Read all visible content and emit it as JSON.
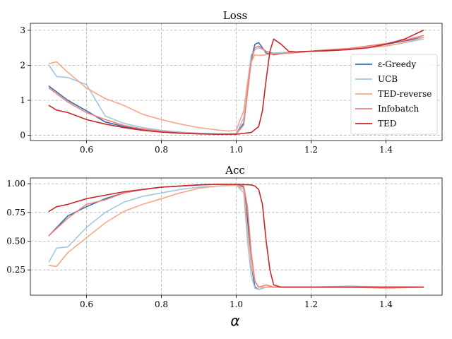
{
  "chart_data": [
    {
      "type": "line",
      "title": "Loss",
      "xlabel": "",
      "ylabel": "",
      "xlim": [
        0.45,
        1.55
      ],
      "ylim": [
        -0.15,
        3.2
      ],
      "xticks": [
        0.6,
        0.8,
        1.0,
        1.2,
        1.4
      ],
      "xtick_labels": [
        "0.6",
        "0.8",
        "1.0",
        "1.2",
        "1.4"
      ],
      "yticks": [
        0,
        1,
        2,
        3
      ],
      "ytick_labels": [
        "0",
        "1",
        "2",
        "3"
      ],
      "grid": true,
      "legend": "right",
      "series": [
        {
          "name": "ε-Greedy",
          "color": "#2f6fad",
          "x": [
            0.5,
            0.55,
            0.6,
            0.65,
            0.7,
            0.75,
            0.8,
            0.85,
            0.9,
            0.95,
            0.98,
            1.0,
            1.02,
            1.03,
            1.04,
            1.05,
            1.06,
            1.08,
            1.1,
            1.15,
            1.2,
            1.25,
            1.3,
            1.35,
            1.4,
            1.45,
            1.5
          ],
          "y": [
            1.4,
            1.0,
            0.7,
            0.38,
            0.25,
            0.16,
            0.1,
            0.06,
            0.04,
            0.03,
            0.03,
            0.04,
            0.35,
            1.3,
            2.2,
            2.6,
            2.65,
            2.35,
            2.3,
            2.38,
            2.4,
            2.45,
            2.45,
            2.5,
            2.6,
            2.7,
            2.8
          ]
        },
        {
          "name": "UCB",
          "color": "#9ec8e0",
          "x": [
            0.5,
            0.52,
            0.55,
            0.6,
            0.65,
            0.7,
            0.75,
            0.8,
            0.85,
            0.9,
            0.95,
            0.98,
            1.0,
            1.02,
            1.03,
            1.04,
            1.05,
            1.06,
            1.08,
            1.1,
            1.15,
            1.2,
            1.25,
            1.3,
            1.35,
            1.4,
            1.45,
            1.5
          ],
          "y": [
            2.0,
            1.68,
            1.65,
            1.45,
            0.55,
            0.34,
            0.22,
            0.14,
            0.09,
            0.06,
            0.04,
            0.04,
            0.05,
            0.5,
            1.5,
            2.3,
            2.45,
            2.5,
            2.4,
            2.35,
            2.38,
            2.4,
            2.42,
            2.45,
            2.5,
            2.55,
            2.65,
            2.75
          ]
        },
        {
          "name": "TED-reverse",
          "color": "#f4a886",
          "x": [
            0.5,
            0.52,
            0.55,
            0.6,
            0.65,
            0.7,
            0.75,
            0.8,
            0.85,
            0.9,
            0.95,
            0.98,
            1.0,
            1.02,
            1.03,
            1.04,
            1.05,
            1.06,
            1.08,
            1.1,
            1.15,
            1.2,
            1.25,
            1.3,
            1.35,
            1.4,
            1.45,
            1.5
          ],
          "y": [
            2.05,
            2.1,
            1.8,
            1.35,
            1.05,
            0.85,
            0.6,
            0.45,
            0.32,
            0.22,
            0.15,
            0.12,
            0.15,
            0.7,
            1.5,
            2.1,
            2.3,
            2.28,
            2.3,
            2.32,
            2.35,
            2.4,
            2.42,
            2.45,
            2.5,
            2.55,
            2.65,
            2.8
          ]
        },
        {
          "name": "Infobatch",
          "color": "#f08078",
          "x": [
            0.5,
            0.55,
            0.6,
            0.65,
            0.7,
            0.75,
            0.8,
            0.85,
            0.9,
            0.95,
            0.98,
            1.0,
            1.02,
            1.03,
            1.04,
            1.05,
            1.06,
            1.08,
            1.1,
            1.15,
            1.2,
            1.25,
            1.3,
            1.35,
            1.4,
            1.45,
            1.5
          ],
          "y": [
            1.35,
            0.95,
            0.65,
            0.45,
            0.28,
            0.18,
            0.11,
            0.07,
            0.05,
            0.03,
            0.03,
            0.04,
            0.3,
            1.2,
            2.1,
            2.5,
            2.55,
            2.4,
            2.32,
            2.36,
            2.4,
            2.45,
            2.48,
            2.55,
            2.62,
            2.72,
            2.85
          ]
        },
        {
          "name": "TED",
          "color": "#c8262a",
          "x": [
            0.5,
            0.52,
            0.55,
            0.6,
            0.65,
            0.7,
            0.75,
            0.8,
            0.85,
            0.9,
            0.95,
            1.0,
            1.04,
            1.06,
            1.07,
            1.08,
            1.09,
            1.1,
            1.12,
            1.14,
            1.16,
            1.2,
            1.25,
            1.3,
            1.35,
            1.4,
            1.45,
            1.5
          ],
          "y": [
            0.85,
            0.72,
            0.65,
            0.45,
            0.32,
            0.22,
            0.14,
            0.09,
            0.06,
            0.04,
            0.03,
            0.03,
            0.08,
            0.25,
            0.7,
            1.6,
            2.4,
            2.75,
            2.6,
            2.4,
            2.38,
            2.4,
            2.42,
            2.45,
            2.5,
            2.6,
            2.75,
            3.0
          ]
        }
      ]
    },
    {
      "type": "line",
      "title": "Acc",
      "xlabel": "α",
      "ylabel": "",
      "xlim": [
        0.45,
        1.55
      ],
      "ylim": [
        0.03,
        1.05
      ],
      "xticks": [
        0.6,
        0.8,
        1.0,
        1.2,
        1.4
      ],
      "xtick_labels": [
        "0.6",
        "0.8",
        "1.0",
        "1.2",
        "1.4"
      ],
      "yticks": [
        0.25,
        0.5,
        0.75,
        1.0
      ],
      "ytick_labels": [
        "0.25",
        "0.50",
        "0.75",
        "1.00"
      ],
      "grid": true,
      "legend": "none",
      "series": [
        {
          "name": "ε-Greedy",
          "color": "#2f6fad",
          "x": [
            0.5,
            0.55,
            0.6,
            0.65,
            0.7,
            0.75,
            0.8,
            0.85,
            0.9,
            0.95,
            1.0,
            1.02,
            1.03,
            1.04,
            1.05,
            1.06,
            1.08,
            1.1,
            1.15,
            1.2,
            1.3,
            1.4,
            1.5
          ],
          "y": [
            0.55,
            0.72,
            0.8,
            0.87,
            0.92,
            0.95,
            0.97,
            0.98,
            0.99,
            0.995,
            0.995,
            0.97,
            0.7,
            0.3,
            0.1,
            0.08,
            0.1,
            0.1,
            0.1,
            0.1,
            0.1,
            0.1,
            0.1
          ]
        },
        {
          "name": "UCB",
          "color": "#9ec8e0",
          "x": [
            0.5,
            0.52,
            0.55,
            0.6,
            0.65,
            0.7,
            0.75,
            0.8,
            0.85,
            0.9,
            0.95,
            1.0,
            1.02,
            1.03,
            1.04,
            1.05,
            1.06,
            1.08,
            1.1,
            1.15,
            1.2,
            1.3,
            1.4,
            1.5
          ],
          "y": [
            0.32,
            0.44,
            0.45,
            0.62,
            0.75,
            0.84,
            0.89,
            0.92,
            0.95,
            0.97,
            0.98,
            0.99,
            0.92,
            0.5,
            0.2,
            0.09,
            0.08,
            0.1,
            0.1,
            0.1,
            0.1,
            0.11,
            0.1,
            0.1
          ]
        },
        {
          "name": "TED-reverse",
          "color": "#f4a886",
          "x": [
            0.5,
            0.52,
            0.55,
            0.6,
            0.65,
            0.7,
            0.75,
            0.8,
            0.85,
            0.9,
            0.95,
            1.0,
            1.02,
            1.03,
            1.04,
            1.05,
            1.06,
            1.08,
            1.1,
            1.15,
            1.2,
            1.3,
            1.4,
            1.5
          ],
          "y": [
            0.29,
            0.28,
            0.4,
            0.53,
            0.66,
            0.76,
            0.82,
            0.87,
            0.92,
            0.96,
            0.98,
            0.985,
            0.95,
            0.6,
            0.3,
            0.15,
            0.1,
            0.1,
            0.1,
            0.1,
            0.1,
            0.1,
            0.09,
            0.1
          ]
        },
        {
          "name": "Infobatch",
          "color": "#f08078",
          "x": [
            0.5,
            0.55,
            0.6,
            0.65,
            0.7,
            0.75,
            0.8,
            0.85,
            0.9,
            0.95,
            1.0,
            1.02,
            1.03,
            1.04,
            1.05,
            1.06,
            1.08,
            1.1,
            1.15,
            1.2,
            1.3,
            1.4,
            1.5
          ],
          "y": [
            0.55,
            0.7,
            0.82,
            0.86,
            0.92,
            0.95,
            0.97,
            0.98,
            0.99,
            0.995,
            0.995,
            0.98,
            0.8,
            0.4,
            0.15,
            0.1,
            0.12,
            0.1,
            0.1,
            0.1,
            0.1,
            0.1,
            0.1
          ]
        },
        {
          "name": "TED",
          "color": "#c8262a",
          "x": [
            0.5,
            0.52,
            0.55,
            0.6,
            0.65,
            0.7,
            0.75,
            0.8,
            0.85,
            0.9,
            0.95,
            1.0,
            1.04,
            1.05,
            1.06,
            1.07,
            1.08,
            1.09,
            1.1,
            1.12,
            1.15,
            1.2,
            1.3,
            1.4,
            1.5
          ],
          "y": [
            0.76,
            0.8,
            0.82,
            0.87,
            0.9,
            0.93,
            0.95,
            0.97,
            0.98,
            0.99,
            0.995,
            0.995,
            0.99,
            0.98,
            0.95,
            0.82,
            0.5,
            0.25,
            0.12,
            0.1,
            0.1,
            0.1,
            0.1,
            0.1,
            0.1
          ]
        }
      ]
    }
  ]
}
